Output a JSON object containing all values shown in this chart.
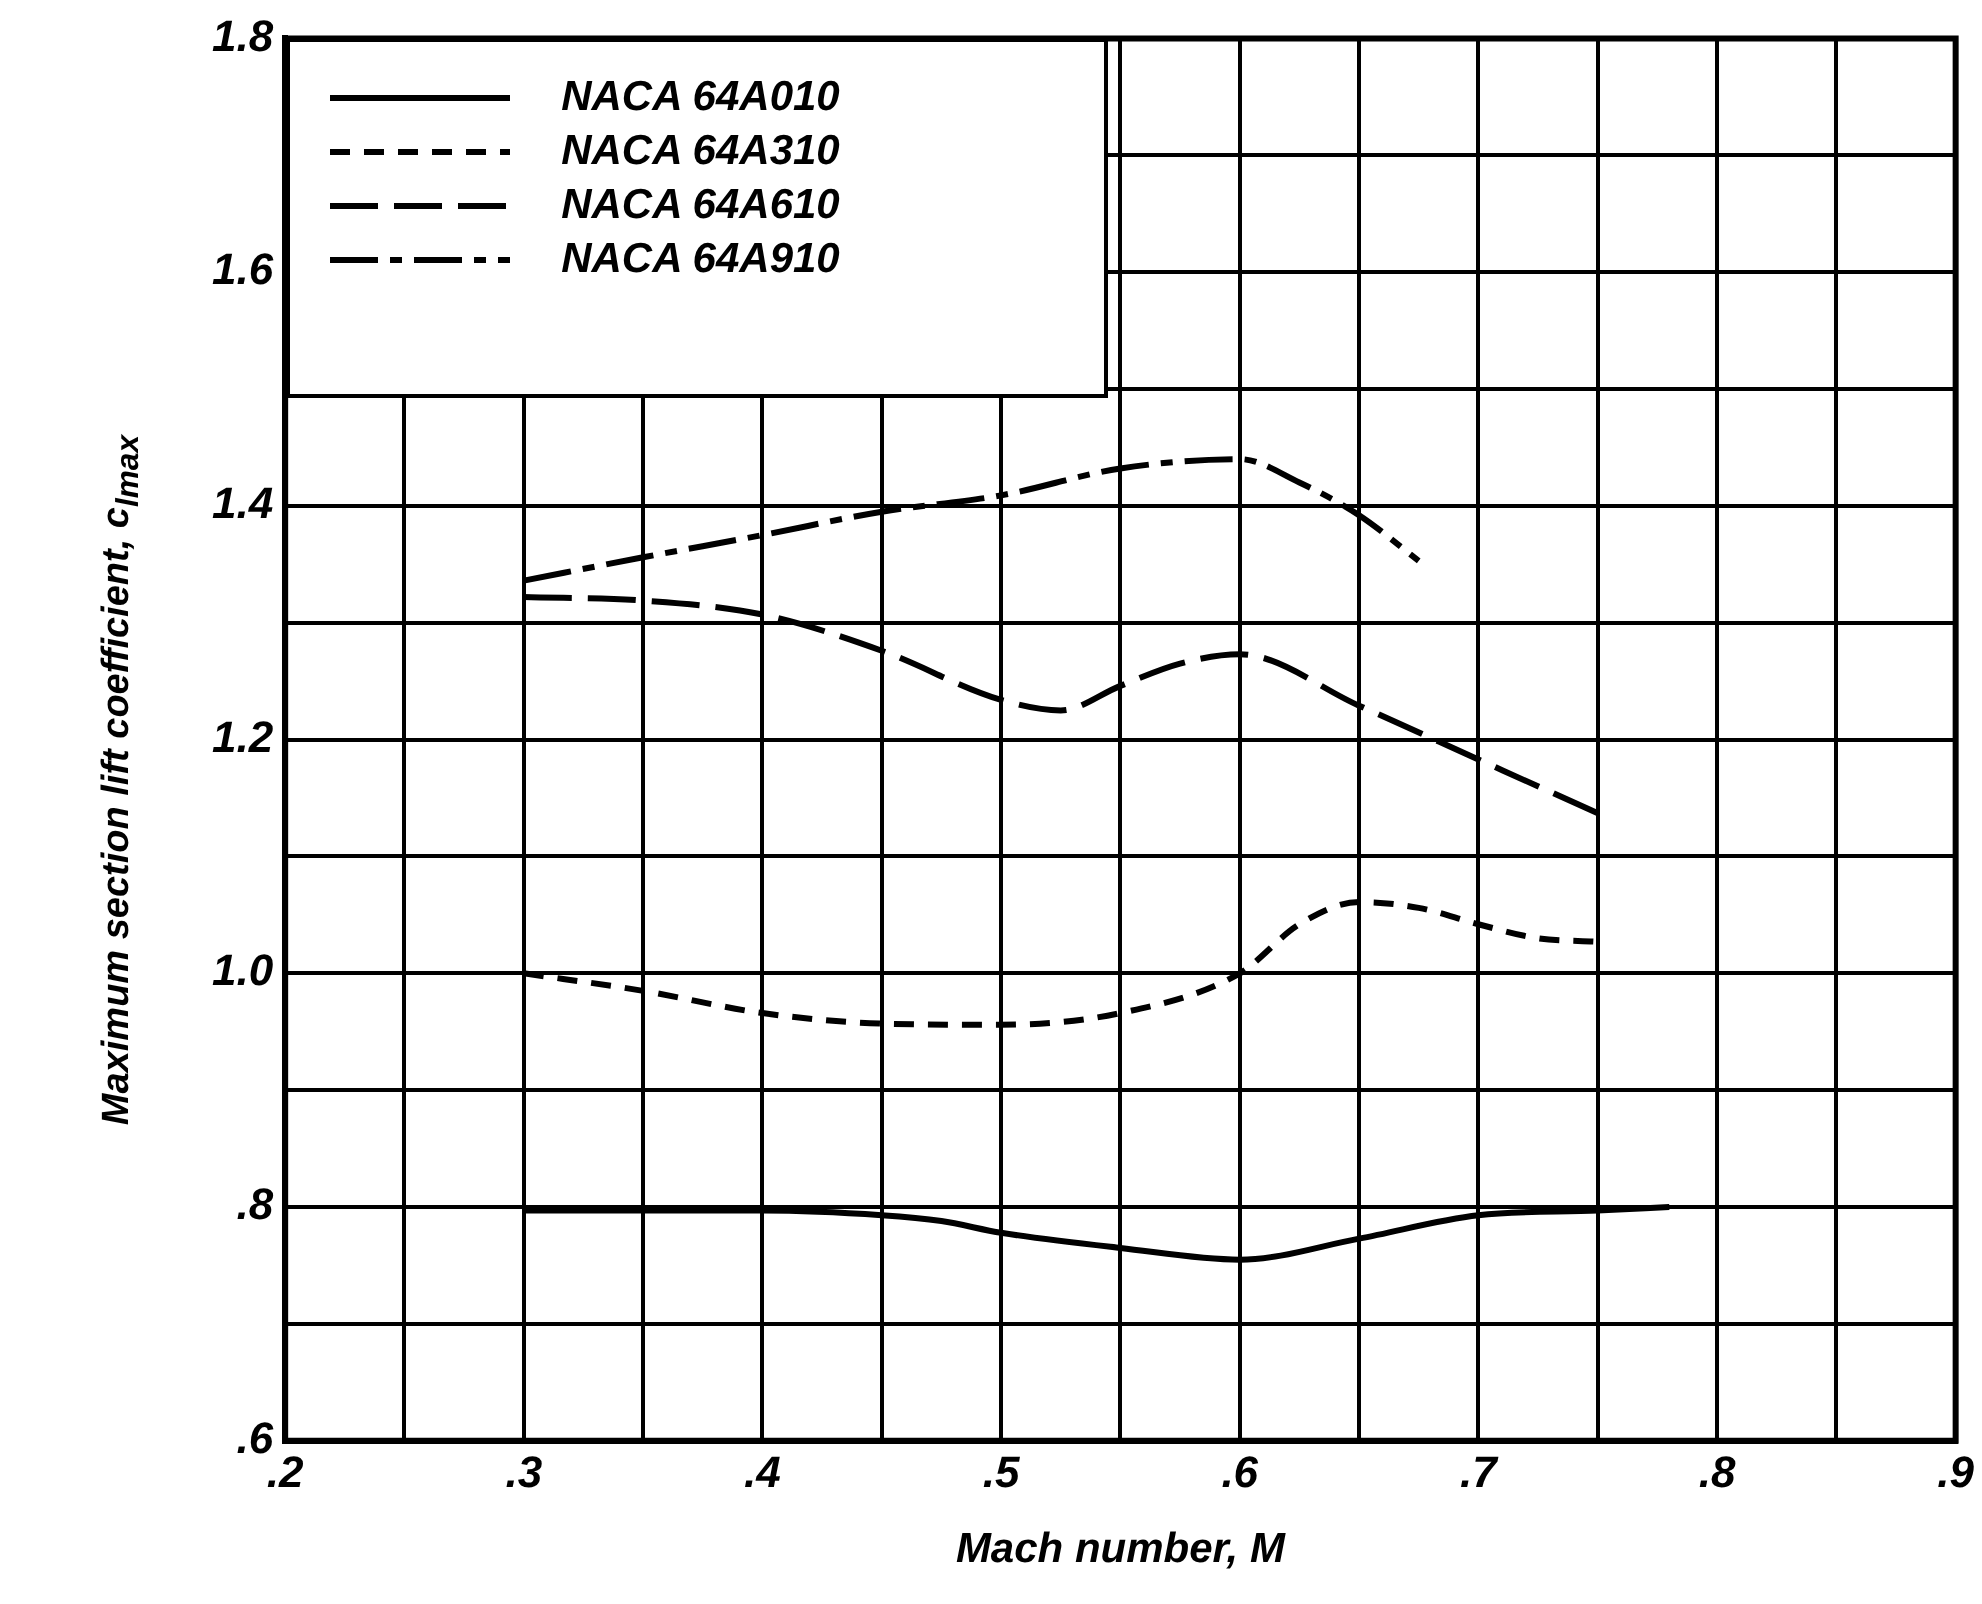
{
  "chart_data": {
    "type": "line",
    "xlabel": "Mach number, M",
    "ylabel": "Maximum section lift coefficient, c$_{l}$$_{max}$",
    "xlim": [
      0.2,
      0.9
    ],
    "xticks": [
      {
        "value": 0.2,
        "label": ".2"
      },
      {
        "value": 0.25,
        "label": null
      },
      {
        "value": 0.3,
        "label": ".3"
      },
      {
        "value": 0.35,
        "label": null
      },
      {
        "value": 0.4,
        "label": ".4"
      },
      {
        "value": 0.45,
        "label": null
      },
      {
        "value": 0.5,
        "label": ".5"
      },
      {
        "value": 0.55,
        "label": null
      },
      {
        "value": 0.6,
        "label": ".6"
      },
      {
        "value": 0.65,
        "label": null
      },
      {
        "value": 0.7,
        "label": ".7"
      },
      {
        "value": 0.75,
        "label": null
      },
      {
        "value": 0.8,
        "label": ".8"
      },
      {
        "value": 0.85,
        "label": null
      },
      {
        "value": 0.9,
        "label": ".9"
      }
    ],
    "ylim": [
      0.6,
      1.8
    ],
    "yticks": [
      {
        "value": 0.6,
        "label": ".6"
      },
      {
        "value": 0.7,
        "label": null
      },
      {
        "value": 0.8,
        "label": ".8"
      },
      {
        "value": 0.9,
        "label": null
      },
      {
        "value": 1.0,
        "label": "1.0"
      },
      {
        "value": 1.1,
        "label": null
      },
      1.2,
      {
        "value": 1.3,
        "label": null
      },
      1.4,
      {
        "value": 1.5,
        "label": null
      },
      1.6,
      {
        "value": 1.7,
        "label": null
      },
      1.8
    ],
    "grid": true,
    "legend": "top left",
    "marker": "none",
    "series": [
      {
        "name": "NACA 64A010",
        "color": "#000000",
        "line_style": "solid",
        "x": [
          0.3,
          0.4,
          0.45,
          0.475,
          0.5,
          0.55,
          0.6,
          0.65,
          0.7,
          0.75,
          0.78
        ],
        "values": [
          0.797,
          0.797,
          0.793,
          0.788,
          0.778,
          0.765,
          0.755,
          0.773,
          0.793,
          0.797,
          0.8
        ]
      },
      {
        "name": "NACA 64A310",
        "color": "#000000",
        "line_style": "dashed",
        "x": [
          0.3,
          0.35,
          0.4,
          0.45,
          0.5,
          0.55,
          0.6,
          0.625,
          0.65,
          0.675,
          0.7,
          0.725,
          0.75
        ],
        "values": [
          1.0,
          0.985,
          0.966,
          0.957,
          0.956,
          0.966,
          1.0,
          1.042,
          1.061,
          1.056,
          1.042,
          1.03,
          1.027
        ]
      },
      {
        "name": "NACA 64A610",
        "color": "#000000",
        "line_style": "dashed",
        "x": [
          0.3,
          0.35,
          0.4,
          0.45,
          0.5,
          0.525,
          0.55,
          0.575,
          0.6,
          0.65,
          0.7,
          0.75
        ],
        "values": [
          1.322,
          1.319,
          1.307,
          1.276,
          1.234,
          1.225,
          1.246,
          1.265,
          1.273,
          1.229,
          1.183,
          1.137
        ]
      },
      {
        "name": "NACA 64A910",
        "color": "#000000",
        "line_style": "dashed",
        "x": [
          0.3,
          0.35,
          0.4,
          0.45,
          0.5,
          0.55,
          0.6,
          0.625,
          0.65,
          0.675
        ],
        "values": [
          1.336,
          1.356,
          1.375,
          1.395,
          1.409,
          1.432,
          1.44,
          1.42,
          1.392,
          1.353
        ]
      }
    ]
  }
}
